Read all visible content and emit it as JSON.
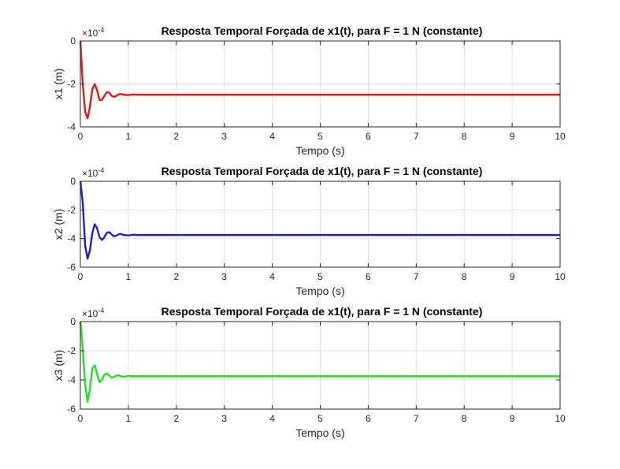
{
  "chart_data": [
    {
      "type": "line",
      "title": "Resposta Temporal Forçada de x1(t), para F = 1 N (constante)",
      "xlabel": "Tempo (s)",
      "ylabel": "x1 (m)",
      "y_exponent_label": "×10",
      "y_exponent": "-4",
      "xlim": [
        0,
        10
      ],
      "ylim": [
        -4,
        0
      ],
      "xticks": [
        "0",
        "1",
        "2",
        "3",
        "4",
        "5",
        "6",
        "7",
        "8",
        "9",
        "10"
      ],
      "yticks": [
        "0",
        "-2",
        "-4"
      ],
      "grid": true,
      "color": "#e31a1c",
      "series": [
        {
          "x": [
            0,
            0.05,
            0.1,
            0.15,
            0.2,
            0.25,
            0.3,
            0.35,
            0.4,
            0.45,
            0.5,
            0.55,
            0.6,
            0.65,
            0.7,
            0.75,
            0.8,
            0.85,
            0.9,
            1.0,
            1.1,
            1.2,
            1.3,
            1.5,
            2,
            3,
            4,
            5,
            6,
            7,
            8,
            9,
            10
          ],
          "values": [
            0,
            -2.0,
            -3.3,
            -3.6,
            -3.05,
            -2.25,
            -2.0,
            -2.3,
            -2.75,
            -2.75,
            -2.55,
            -2.38,
            -2.4,
            -2.55,
            -2.6,
            -2.55,
            -2.48,
            -2.47,
            -2.5,
            -2.52,
            -2.49,
            -2.5,
            -2.5,
            -2.5,
            -2.5,
            -2.5,
            -2.5,
            -2.5,
            -2.5,
            -2.5,
            -2.5,
            -2.5,
            -2.5
          ]
        }
      ]
    },
    {
      "type": "line",
      "title": "Resposta Temporal Forçada de x1(t), para F = 1 N (constante)",
      "xlabel": "Tempo (s)",
      "ylabel": "x2 (m)",
      "y_exponent_label": "×10",
      "y_exponent": "-4",
      "xlim": [
        0,
        10
      ],
      "ylim": [
        -6,
        0
      ],
      "xticks": [
        "0",
        "1",
        "2",
        "3",
        "4",
        "5",
        "6",
        "7",
        "8",
        "9",
        "10"
      ],
      "yticks": [
        "0",
        "-2",
        "-4",
        "-6"
      ],
      "grid": true,
      "color": "#1f1fcf",
      "series": [
        {
          "x": [
            0,
            0.05,
            0.1,
            0.15,
            0.2,
            0.25,
            0.3,
            0.35,
            0.4,
            0.45,
            0.5,
            0.55,
            0.6,
            0.65,
            0.7,
            0.75,
            0.8,
            0.85,
            0.9,
            1.0,
            1.1,
            1.2,
            1.3,
            1.5,
            2,
            3,
            4,
            5,
            6,
            7,
            8,
            9,
            10
          ],
          "values": [
            0,
            -1.5,
            -4.5,
            -5.4,
            -4.8,
            -3.6,
            -3.0,
            -3.3,
            -3.9,
            -4.1,
            -3.9,
            -3.6,
            -3.55,
            -3.7,
            -3.85,
            -3.8,
            -3.7,
            -3.68,
            -3.75,
            -3.78,
            -3.73,
            -3.75,
            -3.75,
            -3.75,
            -3.75,
            -3.75,
            -3.75,
            -3.75,
            -3.75,
            -3.75,
            -3.75,
            -3.75,
            -3.75
          ]
        }
      ]
    },
    {
      "type": "line",
      "title": "Resposta Temporal Forçada de x1(t), para F = 1 N (constante)",
      "xlabel": "Tempo (s)",
      "ylabel": "x3 (m)",
      "y_exponent_label": "×10",
      "y_exponent": "-4",
      "xlim": [
        0,
        10
      ],
      "ylim": [
        -6,
        0
      ],
      "xticks": [
        "0",
        "1",
        "2",
        "3",
        "4",
        "5",
        "6",
        "7",
        "8",
        "9",
        "10"
      ],
      "yticks": [
        "0",
        "-2",
        "-4",
        "-6"
      ],
      "grid": true,
      "color": "#22e022",
      "series": [
        {
          "x": [
            0,
            0.03,
            0.06,
            0.1,
            0.15,
            0.2,
            0.25,
            0.3,
            0.35,
            0.4,
            0.45,
            0.5,
            0.55,
            0.6,
            0.65,
            0.7,
            0.75,
            0.8,
            0.85,
            0.9,
            1.0,
            1.1,
            1.2,
            1.3,
            1.5,
            2,
            3,
            4,
            5,
            6,
            7,
            8,
            9,
            10
          ],
          "values": [
            0,
            -1.0,
            -2.4,
            -4.3,
            -5.5,
            -4.6,
            -3.2,
            -3.0,
            -3.6,
            -4.15,
            -4.0,
            -3.65,
            -3.55,
            -3.7,
            -3.85,
            -3.8,
            -3.7,
            -3.68,
            -3.75,
            -3.78,
            -3.73,
            -3.75,
            -3.75,
            -3.75,
            -3.75,
            -3.75,
            -3.75,
            -3.75,
            -3.75,
            -3.75,
            -3.75,
            -3.75,
            -3.75,
            -3.75
          ]
        }
      ]
    }
  ]
}
